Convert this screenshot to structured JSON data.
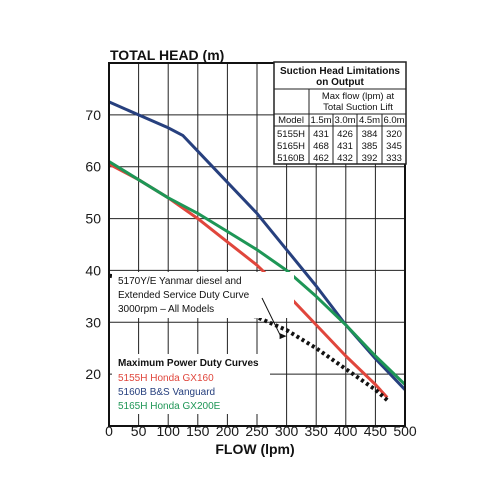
{
  "chart_data": {
    "type": "line",
    "ylabel": "TOTAL HEAD (m)",
    "xlabel": "FLOW (lpm)",
    "xlim": [
      0,
      500
    ],
    "ylim": [
      10,
      80
    ],
    "x_ticks": [
      0,
      50,
      100,
      150,
      200,
      250,
      300,
      350,
      400,
      450,
      500
    ],
    "y_ticks": [
      20,
      30,
      40,
      50,
      60,
      70
    ],
    "grid": true,
    "legend_title": "Maximum Power Duty Curves",
    "series": [
      {
        "name": "5155H Honda GX160",
        "color": "#e0463c",
        "style": "solid",
        "points": [
          [
            0,
            60.5
          ],
          [
            50,
            57.5
          ],
          [
            100,
            54
          ],
          [
            150,
            50
          ],
          [
            200,
            45.5
          ],
          [
            250,
            41
          ],
          [
            300,
            35.5
          ],
          [
            350,
            29.5
          ],
          [
            400,
            23.5
          ],
          [
            450,
            18
          ],
          [
            470,
            15.5
          ]
        ]
      },
      {
        "name": "5160B B&S Vanguard",
        "color": "#27407e",
        "style": "solid",
        "points": [
          [
            0,
            72.5
          ],
          [
            50,
            70
          ],
          [
            100,
            67.5
          ],
          [
            125,
            66
          ],
          [
            150,
            63
          ],
          [
            200,
            57
          ],
          [
            250,
            51
          ],
          [
            300,
            44
          ],
          [
            350,
            37
          ],
          [
            400,
            29.5
          ],
          [
            450,
            23
          ],
          [
            500,
            17
          ]
        ]
      },
      {
        "name": "5165H Honda GX200E",
        "color": "#1e9656",
        "style": "solid",
        "points": [
          [
            0,
            61
          ],
          [
            50,
            57.5
          ],
          [
            100,
            54
          ],
          [
            150,
            51
          ],
          [
            200,
            47.5
          ],
          [
            250,
            44
          ],
          [
            300,
            40
          ],
          [
            350,
            35
          ],
          [
            400,
            29.5
          ],
          [
            450,
            23.5
          ],
          [
            500,
            18
          ]
        ]
      },
      {
        "name": "5170Y/E Yanmar diesel and Extended Service Duty Curve 3000rpm – All Models",
        "color": "#111111",
        "style": "dotted",
        "points": [
          [
            0,
            39
          ],
          [
            50,
            38
          ],
          [
            100,
            36.5
          ],
          [
            150,
            35
          ],
          [
            200,
            33
          ],
          [
            250,
            31
          ],
          [
            300,
            28.5
          ],
          [
            350,
            25
          ],
          [
            400,
            21
          ],
          [
            450,
            17
          ],
          [
            470,
            15
          ]
        ]
      }
    ],
    "annotation": {
      "lines": [
        "5170Y/E Yanmar diesel and",
        "Extended Service Duty Curve",
        "3000rpm – All Models"
      ],
      "arrow_to": [
        300,
        28.5
      ]
    },
    "table": {
      "title": [
        "Suction Head Limitations",
        "on Output"
      ],
      "subheader": [
        "Max flow (lpm) at",
        "Total Suction Lift"
      ],
      "columns": [
        "Model",
        "1.5m",
        "3.0m",
        "4.5m",
        "6.0m"
      ],
      "rows": [
        [
          "5155H",
          "431",
          "426",
          "384",
          "320"
        ],
        [
          "5165H",
          "468",
          "431",
          "385",
          "345"
        ],
        [
          "5160B",
          "462",
          "432",
          "392",
          "333"
        ]
      ]
    }
  }
}
